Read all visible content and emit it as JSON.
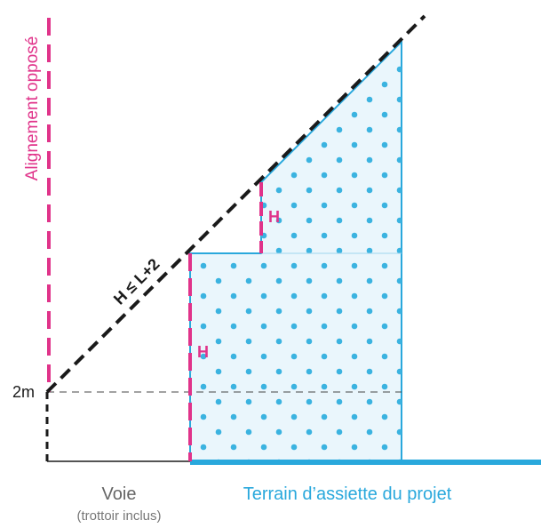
{
  "labels": {
    "alignement": "Alignement opposé",
    "rule": "H ≤ L+2",
    "height_marker_1": "H",
    "height_marker_2": "H",
    "two_m": "2m",
    "voie": "Voie",
    "voie_sub": "(trottoir inclus)",
    "terrain": "Terrain d’assiette du projet"
  },
  "colors": {
    "magenta": "#e0338a",
    "blue": "#29a8dc",
    "dot_fill": "#3bb3e0",
    "shape_fill": "#eaf6fc",
    "black": "#1a1a1a",
    "grey_text": "#666666"
  }
}
